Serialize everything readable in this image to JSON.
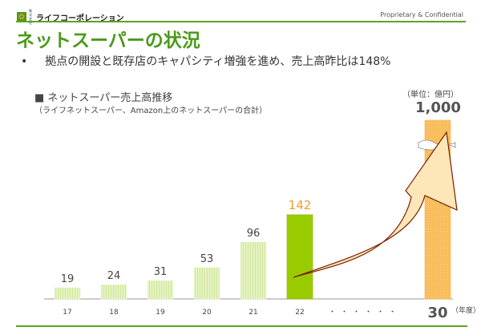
{
  "header": {
    "company": "ライフコーポレーション",
    "company_prefix": "株式会社",
    "confidential": "Proprietary & Confidential"
  },
  "title": "ネットスーパーの状況",
  "bullet": "拠点の開設と既存店のキャパシティ増強を進め、売上高昨比は148%",
  "bullet_marker": "•",
  "chart_data": {
    "type": "bar",
    "title": "■ ネットスーパー売上高推移",
    "subtitle": "（ライフネットスーパー、Amazon上のネットスーパーの合計）",
    "unit": "（単位：億円）",
    "xlabel": "（年度）",
    "categories": [
      "17",
      "18",
      "19",
      "20",
      "21",
      "22",
      "30"
    ],
    "values": [
      19,
      24,
      31,
      53,
      96,
      142,
      1000
    ],
    "data_labels": [
      "19",
      "24",
      "31",
      "53",
      "96",
      "142",
      "1,000"
    ],
    "ellipsis": "・・・・・・",
    "axis_break": true,
    "colors": {
      "past": "#e4f2c0",
      "current": "#99cc00",
      "target": "#f9b54a",
      "arrow": "#fde6b8",
      "arrow_outline": "#7a1f00",
      "current_label": "#f39b2f"
    }
  }
}
